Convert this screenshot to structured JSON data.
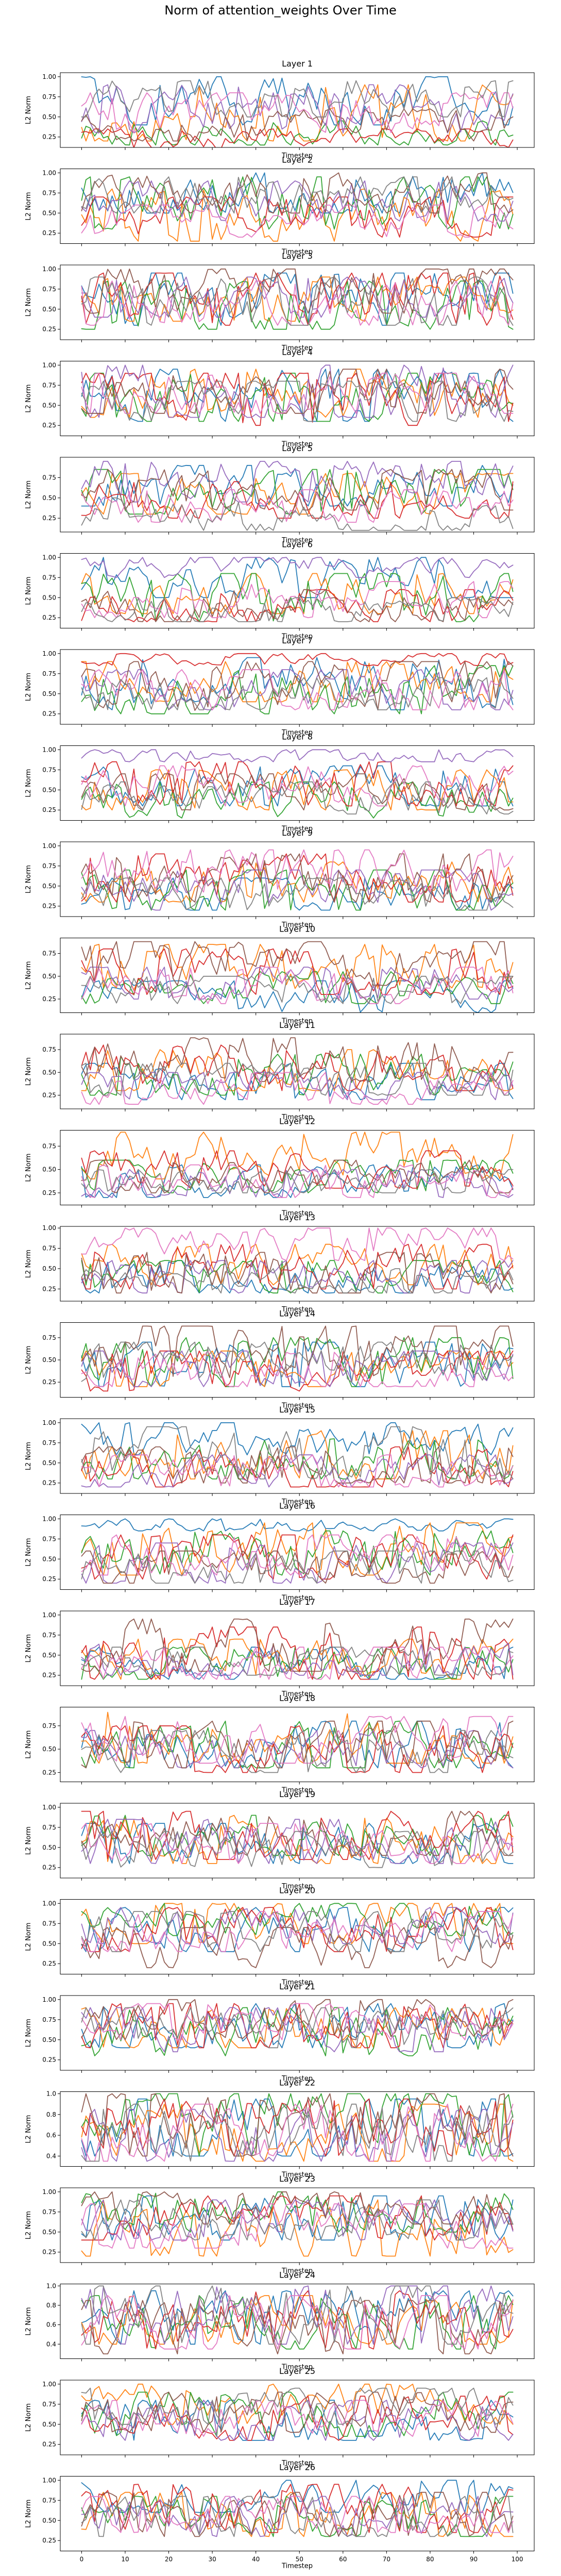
{
  "title": "Norm of attention_weights Over Time",
  "x_axis": {
    "label": "Timestep",
    "range": [
      0,
      99
    ],
    "ticks": [
      0,
      10,
      20,
      30,
      40,
      50,
      60,
      70,
      80,
      90,
      100
    ]
  },
  "y_axis_label": "L2 Norm",
  "series_colors": [
    "#1f77b4",
    "#ff7f0e",
    "#2ca02c",
    "#d62728",
    "#9467bd",
    "#8c564b",
    "#e377c2",
    "#7f7f7f"
  ],
  "chart_data": {
    "type": "line",
    "x_count": 100,
    "panels": [
      {
        "title": "Layer 1",
        "yticks": [
          "1.00",
          "0.75",
          "0.50",
          "0.25"
        ],
        "ylim": [
          0.12,
          1.05
        ],
        "ranges": [
          [
            0.4,
            1.0
          ],
          [
            0.2,
            0.9
          ],
          [
            0.15,
            0.45
          ],
          [
            0.1,
            0.35
          ],
          [
            0.3,
            0.9
          ],
          [
            0.2,
            0.6
          ],
          [
            0.3,
            0.8
          ],
          [
            0.5,
            0.95
          ]
        ]
      },
      {
        "title": "Layer 2",
        "yticks": [
          "1.00",
          "0.75",
          "0.50",
          "0.25"
        ],
        "ylim": [
          0.12,
          1.05
        ],
        "ranges": [
          [
            0.5,
            1.0
          ],
          [
            0.15,
            0.8
          ],
          [
            0.3,
            0.95
          ],
          [
            0.2,
            0.7
          ],
          [
            0.4,
            0.9
          ],
          [
            0.5,
            1.0
          ],
          [
            0.2,
            0.6
          ],
          [
            0.5,
            0.95
          ]
        ]
      },
      {
        "title": "Layer 3",
        "yticks": [
          "1.00",
          "0.75",
          "0.50",
          "0.25"
        ],
        "ylim": [
          0.12,
          1.05
        ],
        "ranges": [
          [
            0.3,
            0.95
          ],
          [
            0.35,
            0.9
          ],
          [
            0.25,
            0.85
          ],
          [
            0.3,
            0.95
          ],
          [
            0.4,
            0.9
          ],
          [
            0.45,
            1.0
          ],
          [
            0.3,
            0.85
          ],
          [
            0.3,
            0.9
          ]
        ]
      },
      {
        "title": "Layer 4",
        "yticks": [
          "1.00",
          "0.75",
          "0.50",
          "0.25"
        ],
        "ylim": [
          0.12,
          1.05
        ],
        "ranges": [
          [
            0.3,
            0.95
          ],
          [
            0.35,
            0.95
          ],
          [
            0.3,
            0.9
          ],
          [
            0.25,
            0.9
          ],
          [
            0.35,
            1.0
          ],
          [
            0.4,
            0.95
          ],
          [
            0.4,
            0.9
          ],
          [
            0.3,
            0.8
          ]
        ]
      },
      {
        "title": "Layer 5",
        "yticks": [
          "0.75",
          "0.50",
          "0.25"
        ],
        "ylim": [
          0.08,
          1.0
        ],
        "ranges": [
          [
            0.4,
            0.9
          ],
          [
            0.3,
            0.8
          ],
          [
            0.3,
            0.85
          ],
          [
            0.25,
            0.7
          ],
          [
            0.45,
            0.95
          ],
          [
            0.35,
            0.85
          ],
          [
            0.2,
            0.6
          ],
          [
            0.1,
            0.5
          ]
        ]
      },
      {
        "title": "Layer 6",
        "yticks": [
          "1.00",
          "0.75",
          "0.50",
          "0.25"
        ],
        "ylim": [
          0.12,
          1.05
        ],
        "ranges": [
          [
            0.5,
            1.0
          ],
          [
            0.3,
            0.8
          ],
          [
            0.2,
            0.8
          ],
          [
            0.2,
            0.6
          ],
          [
            0.75,
            1.0
          ],
          [
            0.2,
            0.6
          ],
          [
            0.25,
            0.7
          ],
          [
            0.2,
            0.5
          ]
        ]
      },
      {
        "title": "Layer 7",
        "yticks": [
          "1.00",
          "0.75",
          "0.50",
          "0.25"
        ],
        "ylim": [
          0.12,
          1.05
        ],
        "ranges": [
          [
            0.3,
            0.95
          ],
          [
            0.4,
            0.9
          ],
          [
            0.25,
            0.85
          ],
          [
            0.85,
            1.0
          ],
          [
            0.3,
            0.8
          ],
          [
            0.25,
            0.9
          ],
          [
            0.3,
            0.8
          ],
          [
            0.3,
            0.7
          ]
        ]
      },
      {
        "title": "Layer 8",
        "yticks": [
          "1.00",
          "0.75",
          "0.50",
          "0.25"
        ],
        "ylim": [
          0.12,
          1.05
        ],
        "ranges": [
          [
            0.3,
            0.8
          ],
          [
            0.25,
            0.75
          ],
          [
            0.15,
            0.6
          ],
          [
            0.3,
            0.85
          ],
          [
            0.85,
            1.0
          ],
          [
            0.25,
            0.7
          ],
          [
            0.3,
            0.8
          ],
          [
            0.2,
            0.6
          ]
        ]
      },
      {
        "title": "Layer 9",
        "yticks": [
          "1.00",
          "0.75",
          "0.50",
          "0.25"
        ],
        "ylim": [
          0.12,
          1.05
        ],
        "ranges": [
          [
            0.2,
            0.6
          ],
          [
            0.3,
            0.8
          ],
          [
            0.2,
            0.7
          ],
          [
            0.3,
            0.9
          ],
          [
            0.2,
            0.7
          ],
          [
            0.3,
            0.9
          ],
          [
            0.4,
            0.95
          ],
          [
            0.2,
            0.6
          ]
        ]
      },
      {
        "title": "Layer 10",
        "yticks": [
          "0.75",
          "0.50",
          "0.25"
        ],
        "ylim": [
          0.1,
          0.92
        ],
        "ranges": [
          [
            0.1,
            0.45
          ],
          [
            0.35,
            0.85
          ],
          [
            0.2,
            0.55
          ],
          [
            0.3,
            0.8
          ],
          [
            0.25,
            0.6
          ],
          [
            0.4,
            0.88
          ],
          [
            0.2,
            0.6
          ],
          [
            0.2,
            0.5
          ]
        ]
      },
      {
        "title": "Layer 11",
        "yticks": [
          "0.75",
          "0.50",
          "0.25"
        ],
        "ylim": [
          0.1,
          0.92
        ],
        "ranges": [
          [
            0.2,
            0.6
          ],
          [
            0.3,
            0.75
          ],
          [
            0.25,
            0.7
          ],
          [
            0.3,
            0.8
          ],
          [
            0.2,
            0.5
          ],
          [
            0.4,
            0.88
          ],
          [
            0.15,
            0.5
          ],
          [
            0.25,
            0.6
          ]
        ]
      },
      {
        "title": "Layer 12",
        "yticks": [
          "0.75",
          "0.50",
          "0.25"
        ],
        "ylim": [
          0.12,
          0.92
        ],
        "ranges": [
          [
            0.2,
            0.55
          ],
          [
            0.4,
            0.9
          ],
          [
            0.25,
            0.6
          ],
          [
            0.3,
            0.7
          ],
          [
            0.2,
            0.5
          ],
          [
            0.25,
            0.6
          ],
          [
            0.2,
            0.55
          ],
          [
            0.25,
            0.5
          ]
        ]
      },
      {
        "title": "Layer 13",
        "yticks": [
          "1.00",
          "0.75",
          "0.50",
          "0.25"
        ],
        "ylim": [
          0.1,
          1.02
        ],
        "ranges": [
          [
            0.2,
            0.6
          ],
          [
            0.3,
            0.8
          ],
          [
            0.2,
            0.6
          ],
          [
            0.25,
            0.8
          ],
          [
            0.2,
            0.6
          ],
          [
            0.2,
            0.7
          ],
          [
            0.6,
            1.0
          ],
          [
            0.2,
            0.5
          ]
        ]
      },
      {
        "title": "Layer 14",
        "yticks": [
          "0.75",
          "0.50",
          "0.25"
        ],
        "ylim": [
          0.08,
          0.92
        ],
        "ranges": [
          [
            0.2,
            0.7
          ],
          [
            0.2,
            0.6
          ],
          [
            0.2,
            0.75
          ],
          [
            0.15,
            0.6
          ],
          [
            0.2,
            0.6
          ],
          [
            0.3,
            0.88
          ],
          [
            0.2,
            0.6
          ],
          [
            0.25,
            0.7
          ]
        ]
      },
      {
        "title": "Layer 15",
        "yticks": [
          "1.00",
          "0.75",
          "0.50",
          "0.25"
        ],
        "ylim": [
          0.12,
          1.05
        ],
        "ranges": [
          [
            0.6,
            1.0
          ],
          [
            0.3,
            0.9
          ],
          [
            0.3,
            0.8
          ],
          [
            0.2,
            0.7
          ],
          [
            0.2,
            0.6
          ],
          [
            0.25,
            0.7
          ],
          [
            0.2,
            0.6
          ],
          [
            0.3,
            0.95
          ]
        ]
      },
      {
        "title": "Layer 16",
        "yticks": [
          "1.00",
          "0.75",
          "0.50",
          "0.25"
        ],
        "ylim": [
          0.12,
          1.05
        ],
        "ranges": [
          [
            0.85,
            1.0
          ],
          [
            0.3,
            0.95
          ],
          [
            0.3,
            0.85
          ],
          [
            0.25,
            0.8
          ],
          [
            0.2,
            0.7
          ],
          [
            0.2,
            0.6
          ],
          [
            0.3,
            0.8
          ],
          [
            0.2,
            0.6
          ]
        ]
      },
      {
        "title": "Layer 17",
        "yticks": [
          "1.00",
          "0.75",
          "0.50",
          "0.25"
        ],
        "ylim": [
          0.12,
          1.05
        ],
        "ranges": [
          [
            0.2,
            0.6
          ],
          [
            0.2,
            0.7
          ],
          [
            0.2,
            0.6
          ],
          [
            0.2,
            0.85
          ],
          [
            0.25,
            0.65
          ],
          [
            0.3,
            0.95
          ],
          [
            0.2,
            0.6
          ],
          [
            0.25,
            0.6
          ]
        ]
      },
      {
        "title": "Layer 18",
        "yticks": [
          "0.75",
          "0.50",
          "0.25"
        ],
        "ylim": [
          0.15,
          0.95
        ],
        "ranges": [
          [
            0.3,
            0.8
          ],
          [
            0.35,
            0.9
          ],
          [
            0.3,
            0.8
          ],
          [
            0.25,
            0.75
          ],
          [
            0.3,
            0.7
          ],
          [
            0.3,
            0.8
          ],
          [
            0.35,
            0.85
          ],
          [
            0.25,
            0.7
          ]
        ]
      },
      {
        "title": "Layer 19",
        "yticks": [
          "1.00",
          "0.75",
          "0.50",
          "0.25"
        ],
        "ylim": [
          0.12,
          1.05
        ],
        "ranges": [
          [
            0.3,
            0.8
          ],
          [
            0.3,
            0.9
          ],
          [
            0.4,
            0.9
          ],
          [
            0.35,
            0.95
          ],
          [
            0.3,
            0.85
          ],
          [
            0.4,
            0.95
          ],
          [
            0.3,
            0.8
          ],
          [
            0.25,
            0.7
          ]
        ]
      },
      {
        "title": "Layer 20",
        "yticks": [
          "1.00",
          "0.75",
          "0.50",
          "0.25"
        ],
        "ylim": [
          0.12,
          1.05
        ],
        "ranges": [
          [
            0.4,
            0.95
          ],
          [
            0.5,
            1.0
          ],
          [
            0.6,
            1.0
          ],
          [
            0.4,
            0.95
          ],
          [
            0.5,
            0.95
          ],
          [
            0.2,
            0.7
          ],
          [
            0.4,
            0.9
          ],
          [
            0.4,
            0.9
          ]
        ]
      },
      {
        "title": "Layer 21",
        "yticks": [
          "1.00",
          "0.75",
          "0.50",
          "0.25"
        ],
        "ylim": [
          0.12,
          1.05
        ],
        "ranges": [
          [
            0.4,
            0.95
          ],
          [
            0.4,
            0.9
          ],
          [
            0.3,
            0.9
          ],
          [
            0.4,
            0.95
          ],
          [
            0.35,
            0.9
          ],
          [
            0.5,
            1.0
          ],
          [
            0.5,
            0.95
          ],
          [
            0.4,
            0.9
          ]
        ]
      },
      {
        "title": "Layer 22",
        "yticks": [
          "1.0",
          "0.8",
          "0.6",
          "0.4"
        ],
        "ylim": [
          0.3,
          1.02
        ],
        "ranges": [
          [
            0.4,
            0.95
          ],
          [
            0.35,
            0.9
          ],
          [
            0.4,
            1.0
          ],
          [
            0.4,
            0.95
          ],
          [
            0.35,
            0.85
          ],
          [
            0.4,
            1.0
          ],
          [
            0.35,
            0.9
          ],
          [
            0.35,
            0.9
          ]
        ]
      },
      {
        "title": "Layer 23",
        "yticks": [
          "1.00",
          "0.75",
          "0.50",
          "0.25"
        ],
        "ylim": [
          0.12,
          1.05
        ],
        "ranges": [
          [
            0.4,
            0.95
          ],
          [
            0.2,
            0.9
          ],
          [
            0.5,
            1.0
          ],
          [
            0.4,
            0.95
          ],
          [
            0.4,
            0.9
          ],
          [
            0.6,
            1.0
          ],
          [
            0.3,
            0.85
          ],
          [
            0.4,
            0.9
          ]
        ]
      },
      {
        "title": "Layer 24",
        "yticks": [
          "1.0",
          "0.8",
          "0.6",
          "0.4"
        ],
        "ylim": [
          0.25,
          1.02
        ],
        "ranges": [
          [
            0.4,
            0.95
          ],
          [
            0.4,
            0.9
          ],
          [
            0.35,
            0.9
          ],
          [
            0.35,
            0.95
          ],
          [
            0.4,
            1.0
          ],
          [
            0.3,
            0.85
          ],
          [
            0.35,
            0.9
          ],
          [
            0.4,
            1.0
          ]
        ]
      },
      {
        "title": "Layer 25",
        "yticks": [
          "1.00",
          "0.75",
          "0.50",
          "0.25"
        ],
        "ylim": [
          0.12,
          1.05
        ],
        "ranges": [
          [
            0.3,
            0.8
          ],
          [
            0.5,
            1.0
          ],
          [
            0.35,
            0.9
          ],
          [
            0.3,
            0.85
          ],
          [
            0.3,
            0.8
          ],
          [
            0.4,
            0.9
          ],
          [
            0.35,
            0.8
          ],
          [
            0.5,
            0.95
          ]
        ]
      },
      {
        "title": "Layer 26",
        "yticks": [
          "1.00",
          "0.75",
          "0.50",
          "0.25"
        ],
        "ylim": [
          0.12,
          1.05
        ],
        "ranges": [
          [
            0.6,
            1.0
          ],
          [
            0.3,
            0.85
          ],
          [
            0.3,
            0.8
          ],
          [
            0.35,
            0.95
          ],
          [
            0.3,
            0.8
          ],
          [
            0.3,
            0.85
          ],
          [
            0.35,
            0.8
          ],
          [
            0.3,
            0.8
          ]
        ]
      }
    ]
  }
}
